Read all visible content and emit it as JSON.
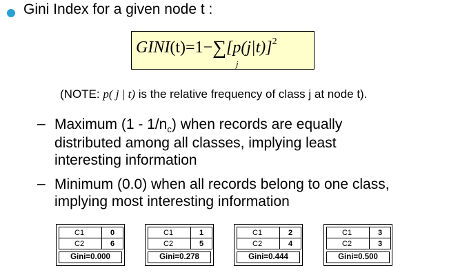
{
  "heading": "Gini Index for a given node t :",
  "formula": {
    "lhs": "GINI",
    "lhs_arg": "(t)",
    "rhs_prefix": "=1−",
    "sigma": "∑",
    "term": "[p(j|t)]",
    "exponent": "2",
    "subscript": "j"
  },
  "note": {
    "prefix": "(NOTE: ",
    "math": "p( j | t)",
    "suffix": " is the relative frequency of class j at node t)."
  },
  "bullets": [
    {
      "dash": "–",
      "line1_before": "Maximum (1 - 1/n",
      "line1_sub": "c",
      "line1_after": ") when records are equally",
      "line2": "distributed among all classes, implying least",
      "line3": "interesting information"
    },
    {
      "dash": "–",
      "line1": "Minimum (0.0) when all records belong to one class,",
      "line2": "implying most interesting information"
    }
  ],
  "tables": [
    {
      "rows": [
        [
          "C1",
          "0"
        ],
        [
          "C2",
          "6"
        ]
      ],
      "gini": "Gini=0.000"
    },
    {
      "rows": [
        [
          "C1",
          "1"
        ],
        [
          "C2",
          "5"
        ]
      ],
      "gini": "Gini=0.278"
    },
    {
      "rows": [
        [
          "C1",
          "2"
        ],
        [
          "C2",
          "4"
        ]
      ],
      "gini": "Gini=0.444"
    },
    {
      "rows": [
        [
          "C1",
          "3"
        ],
        [
          "C2",
          "3"
        ]
      ],
      "gini": "Gini=0.500"
    }
  ],
  "colors": {
    "bullet": "#2a9fd6",
    "formula_background": "#ffffcc"
  }
}
